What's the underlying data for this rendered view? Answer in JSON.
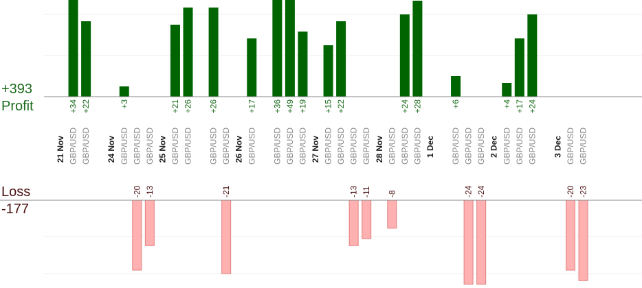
{
  "profit_panel": {
    "label": "Profit",
    "total": "+393"
  },
  "loss_panel": {
    "label": "Loss",
    "total": "-177"
  },
  "chart_data": {
    "type": "bar",
    "pair": "GBP/USD",
    "dates": [
      {
        "label": "21 Nov",
        "slot": 0
      },
      {
        "label": "24 Nov",
        "slot": 4
      },
      {
        "label": "25 Nov",
        "slot": 8
      },
      {
        "label": "26 Nov",
        "slot": 14
      },
      {
        "label": "27 Nov",
        "slot": 20
      },
      {
        "label": "28 Nov",
        "slot": 25
      },
      {
        "label": "1 Dec",
        "slot": 29
      },
      {
        "label": "2 Dec",
        "slot": 34
      },
      {
        "label": "3 Dec",
        "slot": 39
      }
    ],
    "profit_trades": [
      {
        "slot": 1,
        "value": 34,
        "label": "+34"
      },
      {
        "slot": 2,
        "value": 22,
        "label": "+22"
      },
      {
        "slot": 5,
        "value": 3,
        "label": "+3"
      },
      {
        "slot": 9,
        "value": 21,
        "label": "+21"
      },
      {
        "slot": 10,
        "value": 26,
        "label": "+26"
      },
      {
        "slot": 12,
        "value": 26,
        "label": "+26"
      },
      {
        "slot": 15,
        "value": 17,
        "label": "+17"
      },
      {
        "slot": 17,
        "value": 36,
        "label": "+36"
      },
      {
        "slot": 18,
        "value": 49,
        "label": "+49"
      },
      {
        "slot": 19,
        "value": 19,
        "label": "+19"
      },
      {
        "slot": 21,
        "value": 15,
        "label": "+15"
      },
      {
        "slot": 22,
        "value": 22,
        "label": "+22"
      },
      {
        "slot": 27,
        "value": 24,
        "label": "+24"
      },
      {
        "slot": 28,
        "value": 28,
        "label": "+28"
      },
      {
        "slot": 31,
        "value": 6,
        "label": "+6"
      },
      {
        "slot": 35,
        "value": 4,
        "label": "+4"
      },
      {
        "slot": 36,
        "value": 17,
        "label": "+17"
      },
      {
        "slot": 37,
        "value": 24,
        "label": "+24"
      }
    ],
    "loss_trades": [
      {
        "slot": 6,
        "value": -20,
        "label": "-20"
      },
      {
        "slot": 7,
        "value": -13,
        "label": "-13"
      },
      {
        "slot": 13,
        "value": -21,
        "label": "-21"
      },
      {
        "slot": 23,
        "value": -13,
        "label": "-13"
      },
      {
        "slot": 24,
        "value": -11,
        "label": "-11"
      },
      {
        "slot": 26,
        "value": -8,
        "label": "-8"
      },
      {
        "slot": 32,
        "value": -24,
        "label": "-24"
      },
      {
        "slot": 33,
        "value": -24,
        "label": "-24"
      },
      {
        "slot": 40,
        "value": -20,
        "label": "-20"
      },
      {
        "slot": 41,
        "value": -23,
        "label": "-23"
      }
    ],
    "colors": {
      "profit": "#006400",
      "loss": "#ffb0b0",
      "loss_border": "#e08080",
      "profit_text": "#1a6b1a",
      "loss_text": "#4a1010"
    },
    "grid": true
  }
}
